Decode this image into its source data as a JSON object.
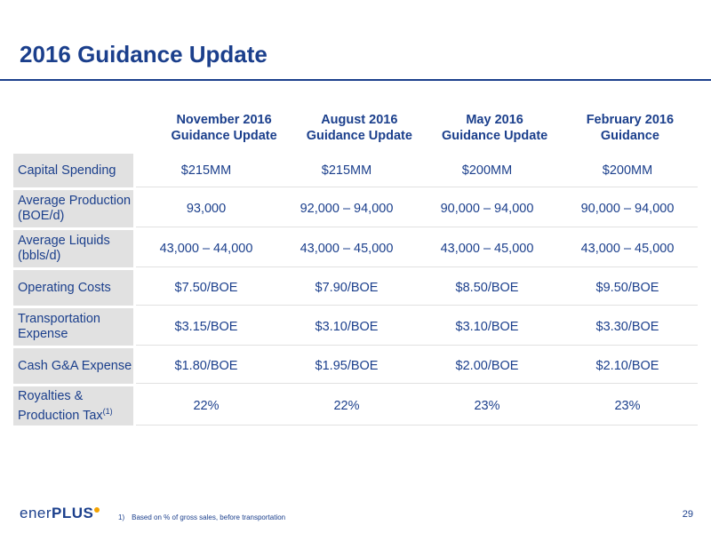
{
  "title": "2016 Guidance Update",
  "table": {
    "columns": [
      [
        "November 2016",
        "Guidance Update"
      ],
      [
        "August 2016",
        "Guidance Update"
      ],
      [
        "May 2016",
        "Guidance Update"
      ],
      [
        "February 2016",
        "Guidance"
      ]
    ],
    "rows": [
      {
        "label": [
          "Capital Spending"
        ],
        "values": [
          "$215MM",
          "$215MM",
          "$200MM",
          "$200MM"
        ]
      },
      {
        "label": [
          "Average Production",
          "(BOE/d)"
        ],
        "values": [
          "93,000",
          "92,000 – 94,000",
          "90,000 – 94,000",
          "90,000 – 94,000"
        ]
      },
      {
        "label": [
          "Average Liquids",
          "(bbls/d)"
        ],
        "values": [
          "43,000 – 44,000",
          "43,000 – 45,000",
          "43,000 – 45,000",
          "43,000 – 45,000"
        ]
      },
      {
        "label": [
          "Operating Costs"
        ],
        "values": [
          "$7.50/BOE",
          "$7.90/BOE",
          "$8.50/BOE",
          "$9.50/BOE"
        ]
      },
      {
        "label": [
          "Transportation",
          "Expense"
        ],
        "values": [
          "$3.15/BOE",
          "$3.10/BOE",
          "$3.10/BOE",
          "$3.30/BOE"
        ]
      },
      {
        "label": [
          "Cash G&A Expense"
        ],
        "values": [
          "$1.80/BOE",
          "$1.95/BOE",
          "$2.00/BOE",
          "$2.10/BOE"
        ]
      },
      {
        "label": [
          "Royalties &",
          "Production Tax"
        ],
        "label_sup": "(1)",
        "values": [
          "22%",
          "22%",
          "23%",
          "23%"
        ]
      }
    ]
  },
  "footer": {
    "logo_text": "ener",
    "logo_text_bold": "PLUS",
    "footnote_number": "1)",
    "footnote_text": "Based on % of gross sales, before transportation",
    "page_number": "29"
  }
}
